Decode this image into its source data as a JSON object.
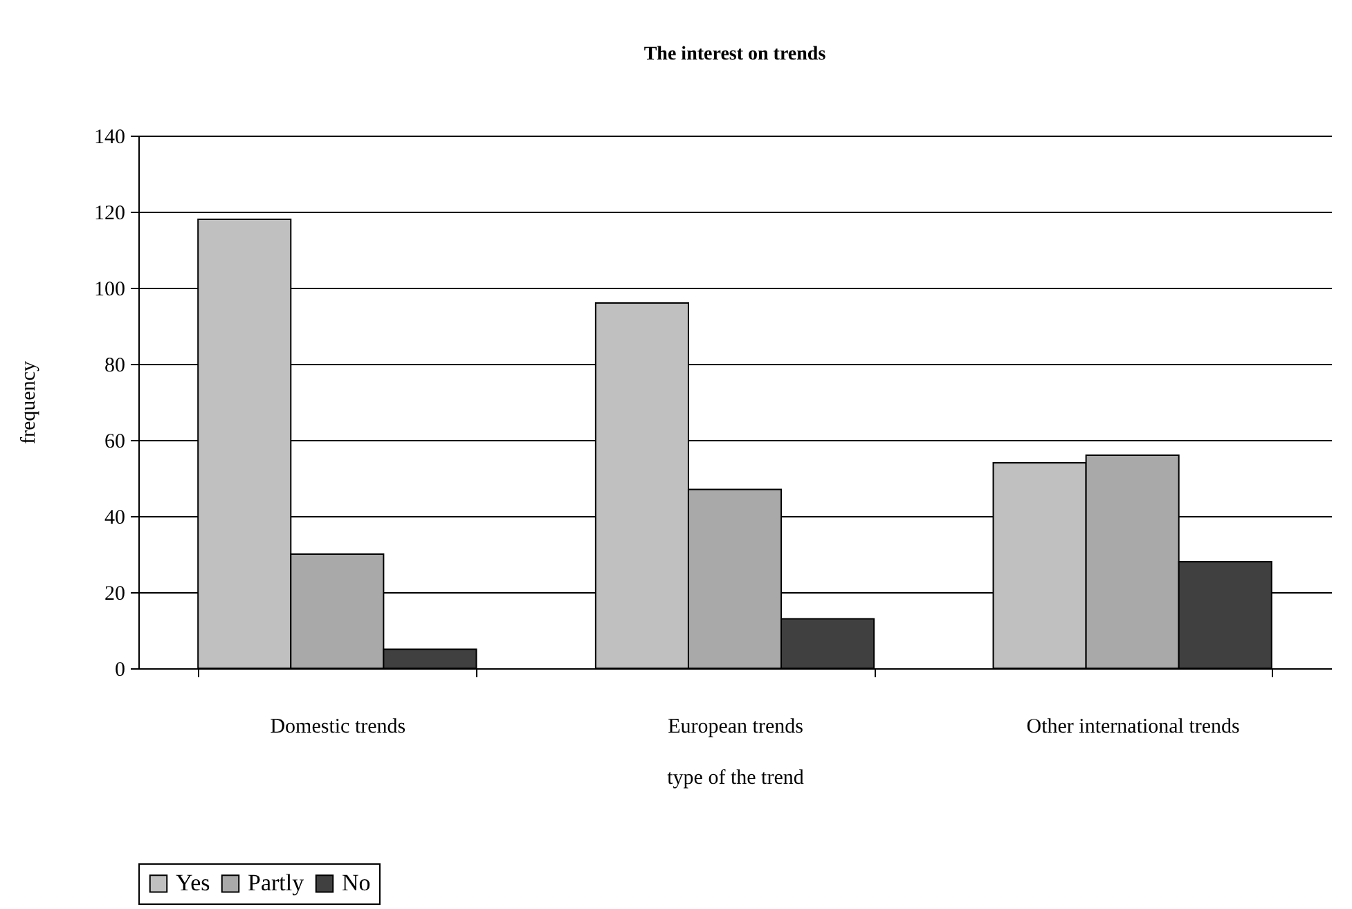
{
  "chart_data": {
    "type": "bar",
    "title": "The interest on trends",
    "xlabel": "type of the trend",
    "ylabel": "frequency",
    "categories": [
      "Domestic trends",
      "European trends",
      "Other international trends"
    ],
    "series": [
      {
        "name": "Yes",
        "color": "#c0c0c0",
        "values": [
          118,
          96,
          54
        ]
      },
      {
        "name": "Partly",
        "color": "#a9a9a9",
        "values": [
          30,
          47,
          56
        ]
      },
      {
        "name": "No",
        "color": "#404040",
        "values": [
          5,
          13,
          28
        ]
      }
    ],
    "ylim": [
      0,
      140
    ],
    "yticks": [
      0,
      20,
      40,
      60,
      80,
      100,
      120,
      140
    ],
    "grid": "y",
    "legend": "bottom"
  }
}
